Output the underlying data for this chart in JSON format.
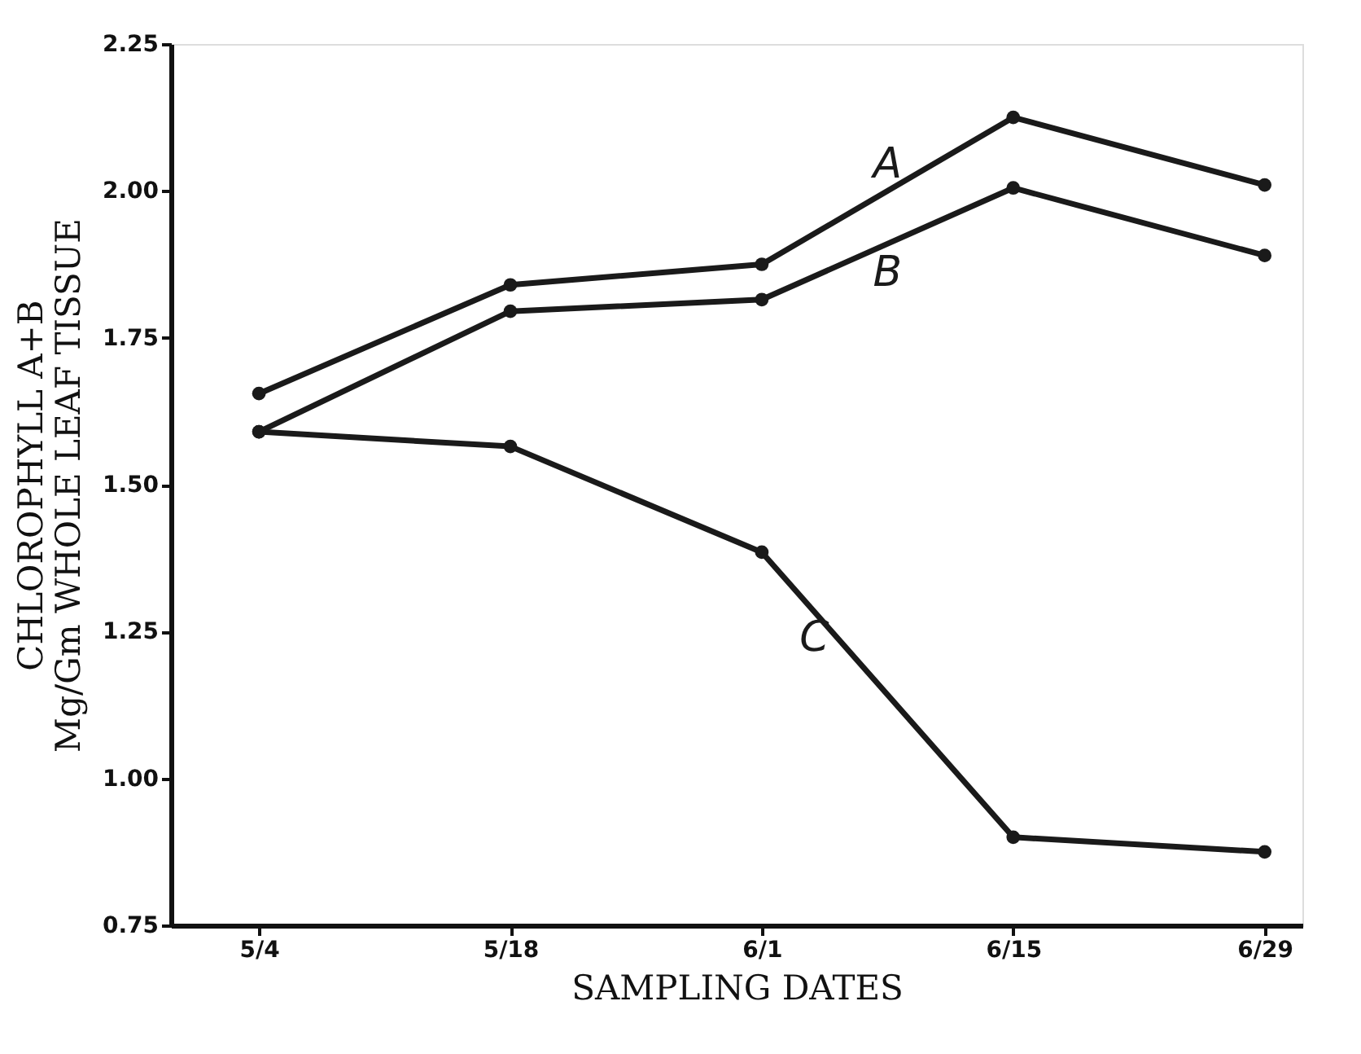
{
  "chart_data": {
    "type": "line",
    "xlabel": "SAMPLING DATES",
    "ylabel": "CHLOROPHYLL A+B\nMg/Gm WHOLE LEAF TISSUE",
    "categories": [
      "5/4",
      "5/18",
      "6/1",
      "6/15",
      "6/29"
    ],
    "series": [
      {
        "name": "A",
        "color": "#1a1a1a",
        "values": [
          1.655,
          1.84,
          1.875,
          2.125,
          2.01
        ]
      },
      {
        "name": "B",
        "color": "#1a1a1a",
        "values": [
          1.59,
          1.795,
          1.815,
          2.005,
          1.89
        ]
      },
      {
        "name": "C",
        "color": "#1a1a1a",
        "values": [
          1.59,
          1.565,
          1.385,
          0.9,
          0.875
        ]
      }
    ],
    "ylim": [
      0.75,
      2.25
    ],
    "yticks": [
      {
        "value": 0.75,
        "label": "0.75"
      },
      {
        "value": 1.0,
        "label": "1.00"
      },
      {
        "value": 1.25,
        "label": "1.25"
      },
      {
        "value": 1.5,
        "label": "1.50"
      },
      {
        "value": 1.75,
        "label": "1.75"
      },
      {
        "value": 2.0,
        "label": "2.00"
      },
      {
        "value": 2.25,
        "label": "2.25"
      }
    ],
    "marker": "circle",
    "line_style": "solid",
    "grid": false
  }
}
